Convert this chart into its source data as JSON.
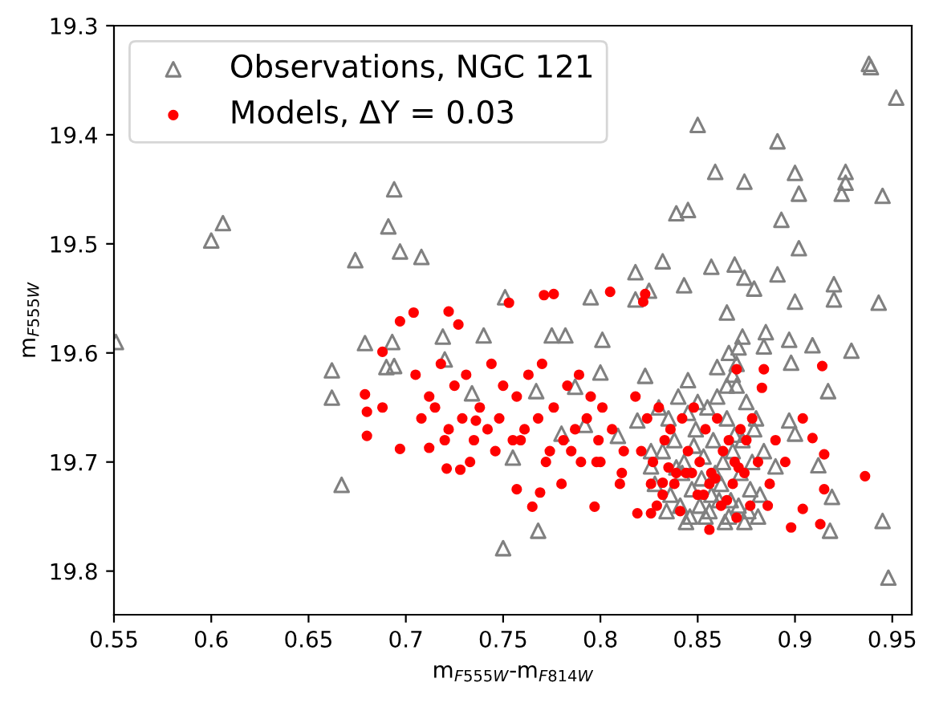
{
  "chart_data": {
    "type": "scatter",
    "xlabel": "m$_{F555W}$-m$_{F814W}$",
    "ylabel": "m$_{F555W}$",
    "xlim": [
      0.55,
      0.96
    ],
    "ylim": [
      19.84,
      19.3
    ],
    "xticks": [
      0.55,
      0.6,
      0.65,
      0.7,
      0.75,
      0.8,
      0.85,
      0.9,
      0.95
    ],
    "yticks": [
      19.3,
      19.4,
      19.5,
      19.6,
      19.7,
      19.8
    ],
    "grid": false,
    "legend": "top left",
    "series": [
      {
        "name": "Observations, NGC 121",
        "color": "#808080",
        "marker": "triangle",
        "x": [
          0.551,
          0.6,
          0.606,
          0.674,
          0.691,
          0.694,
          0.697,
          0.708,
          0.662,
          0.662,
          0.667,
          0.679,
          0.693,
          0.69,
          0.694,
          0.75,
          0.768,
          0.719,
          0.72,
          0.734,
          0.74,
          0.751,
          0.767,
          0.775,
          0.782,
          0.795,
          0.801,
          0.818,
          0.825,
          0.832,
          0.818,
          0.843,
          0.839,
          0.845,
          0.85,
          0.859,
          0.874,
          0.891,
          0.9,
          0.902,
          0.893,
          0.926,
          0.926,
          0.924,
          0.938,
          0.939,
          0.952,
          0.945,
          0.943,
          0.929,
          0.92,
          0.92,
          0.945,
          0.948,
          0.918,
          0.919,
          0.869,
          0.857,
          0.874,
          0.879,
          0.865,
          0.891,
          0.902,
          0.9,
          0.884,
          0.826,
          0.755,
          0.78,
          0.792,
          0.809,
          0.819,
          0.787,
          0.8,
          0.823,
          0.845,
          0.86,
          0.873,
          0.885,
          0.897,
          0.898,
          0.909,
          0.917,
          0.897,
          0.9,
          0.912,
          0.89,
          0.83,
          0.835,
          0.84,
          0.845,
          0.85,
          0.855,
          0.86,
          0.865,
          0.87,
          0.875,
          0.88,
          0.832,
          0.838,
          0.843,
          0.848,
          0.853,
          0.858,
          0.863,
          0.868,
          0.873,
          0.878,
          0.884,
          0.828,
          0.836,
          0.842,
          0.847,
          0.852,
          0.857,
          0.862,
          0.867,
          0.872,
          0.877,
          0.882,
          0.834,
          0.841,
          0.846,
          0.851,
          0.856,
          0.861,
          0.866,
          0.871,
          0.876,
          0.881,
          0.826,
          0.839,
          0.849,
          0.859,
          0.869,
          0.879,
          0.844,
          0.854,
          0.864,
          0.874,
          0.866,
          0.87,
          0.868,
          0.871,
          0.865
        ],
        "values": [
          19.59,
          19.497,
          19.481,
          19.515,
          19.484,
          19.45,
          19.507,
          19.512,
          19.641,
          19.616,
          19.721,
          19.591,
          19.59,
          19.613,
          19.612,
          19.779,
          19.763,
          19.585,
          19.606,
          19.637,
          19.584,
          19.549,
          19.635,
          19.584,
          19.584,
          19.549,
          19.588,
          19.551,
          19.543,
          19.516,
          19.526,
          19.538,
          19.472,
          19.469,
          19.391,
          19.434,
          19.443,
          19.406,
          19.435,
          19.454,
          19.478,
          19.434,
          19.444,
          19.454,
          19.335,
          19.338,
          19.366,
          19.456,
          19.554,
          19.598,
          19.537,
          19.551,
          19.754,
          19.806,
          19.763,
          19.732,
          19.519,
          19.521,
          19.531,
          19.541,
          19.563,
          19.528,
          19.504,
          19.553,
          19.594,
          19.704,
          19.696,
          19.674,
          19.666,
          19.676,
          19.662,
          19.631,
          19.618,
          19.621,
          19.625,
          19.613,
          19.585,
          19.581,
          19.588,
          19.609,
          19.593,
          19.635,
          19.662,
          19.674,
          19.703,
          19.704,
          19.65,
          19.66,
          19.64,
          19.655,
          19.645,
          19.65,
          19.64,
          19.66,
          19.63,
          19.645,
          19.66,
          19.69,
          19.68,
          19.7,
          19.685,
          19.695,
          19.68,
          19.7,
          19.69,
          19.68,
          19.7,
          19.69,
          19.72,
          19.73,
          19.71,
          19.725,
          19.715,
          19.73,
          19.72,
          19.735,
          19.71,
          19.725,
          19.73,
          19.745,
          19.74,
          19.75,
          19.74,
          19.745,
          19.735,
          19.75,
          19.74,
          19.745,
          19.75,
          19.69,
          19.705,
          19.67,
          19.71,
          19.675,
          19.67,
          19.755,
          19.75,
          19.755,
          19.755,
          19.6,
          19.61,
          19.62,
          19.595,
          19.63
        ]
      },
      {
        "name": "Models, ΔY = 0.03",
        "color": "#ff0000",
        "marker": "circle",
        "x": [
          0.704,
          0.722,
          0.697,
          0.727,
          0.688,
          0.679,
          0.68,
          0.688,
          0.68,
          0.697,
          0.712,
          0.721,
          0.728,
          0.736,
          0.753,
          0.771,
          0.776,
          0.805,
          0.822,
          0.823,
          0.832,
          0.819,
          0.826,
          0.797,
          0.765,
          0.769,
          0.757,
          0.87,
          0.883,
          0.904,
          0.909,
          0.915,
          0.936,
          0.915,
          0.904,
          0.913,
          0.898,
          0.856,
          0.87,
          0.886,
          0.914,
          0.884,
          0.705,
          0.712,
          0.718,
          0.725,
          0.731,
          0.738,
          0.744,
          0.75,
          0.757,
          0.763,
          0.77,
          0.776,
          0.783,
          0.789,
          0.795,
          0.801,
          0.708,
          0.715,
          0.722,
          0.729,
          0.735,
          0.742,
          0.748,
          0.755,
          0.761,
          0.768,
          0.774,
          0.781,
          0.787,
          0.793,
          0.799,
          0.806,
          0.812,
          0.72,
          0.733,
          0.746,
          0.759,
          0.772,
          0.785,
          0.798,
          0.811,
          0.818,
          0.824,
          0.83,
          0.836,
          0.842,
          0.848,
          0.854,
          0.86,
          0.866,
          0.872,
          0.878,
          0.821,
          0.827,
          0.833,
          0.839,
          0.845,
          0.851,
          0.857,
          0.863,
          0.869,
          0.875,
          0.881,
          0.826,
          0.832,
          0.838,
          0.844,
          0.85,
          0.856,
          0.862,
          0.868,
          0.874,
          0.829,
          0.841,
          0.853,
          0.865,
          0.877,
          0.835,
          0.847,
          0.859,
          0.871,
          0.89,
          0.895,
          0.887,
          0.8,
          0.81,
          0.79,
          0.78
        ],
        "values": [
          19.563,
          19.562,
          19.571,
          19.574,
          19.599,
          19.638,
          19.676,
          19.65,
          19.654,
          19.688,
          19.687,
          19.706,
          19.707,
          19.662,
          19.554,
          19.547,
          19.546,
          19.544,
          19.553,
          19.546,
          19.719,
          19.747,
          19.747,
          19.741,
          19.741,
          19.728,
          19.725,
          19.615,
          19.632,
          19.66,
          19.678,
          19.693,
          19.713,
          19.725,
          19.743,
          19.757,
          19.76,
          19.762,
          19.751,
          19.74,
          19.612,
          19.615,
          19.62,
          19.64,
          19.61,
          19.63,
          19.62,
          19.65,
          19.61,
          19.63,
          19.64,
          19.62,
          19.61,
          19.65,
          19.63,
          19.62,
          19.64,
          19.65,
          19.66,
          19.65,
          19.67,
          19.66,
          19.68,
          19.67,
          19.66,
          19.68,
          19.67,
          19.66,
          19.69,
          19.68,
          19.67,
          19.66,
          19.68,
          19.67,
          19.69,
          19.68,
          19.7,
          19.69,
          19.68,
          19.7,
          19.69,
          19.7,
          19.71,
          19.64,
          19.66,
          19.65,
          19.67,
          19.66,
          19.65,
          19.67,
          19.66,
          19.68,
          19.67,
          19.66,
          19.69,
          19.7,
          19.68,
          19.71,
          19.69,
          19.7,
          19.71,
          19.69,
          19.7,
          19.68,
          19.7,
          19.72,
          19.73,
          19.72,
          19.71,
          19.73,
          19.72,
          19.74,
          19.72,
          19.71,
          19.74,
          19.745,
          19.73,
          19.735,
          19.74,
          19.705,
          19.71,
          19.715,
          19.705,
          19.68,
          19.7,
          19.72,
          19.7,
          19.72,
          19.7,
          19.72
        ]
      }
    ]
  }
}
